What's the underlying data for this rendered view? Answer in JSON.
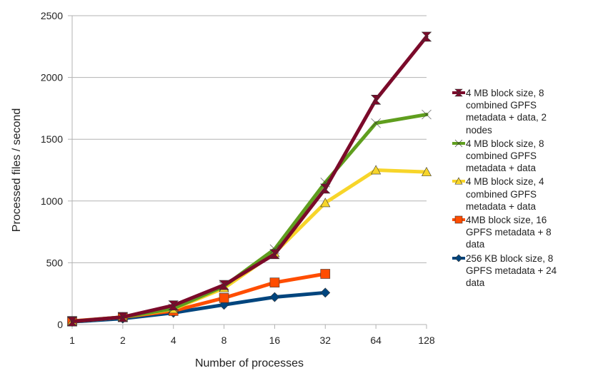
{
  "chart_data": {
    "type": "line",
    "title": "",
    "xlabel": "Number of processes",
    "ylabel": "Processed files / second",
    "x_scale": "log2",
    "categories": [
      "1",
      "2",
      "4",
      "8",
      "16",
      "32",
      "64",
      "128"
    ],
    "x": [
      1,
      2,
      4,
      8,
      16,
      32,
      64,
      128
    ],
    "yticks": [
      "0",
      "500",
      "1000",
      "1500",
      "2000",
      "2500"
    ],
    "ylim": [
      0,
      2500
    ],
    "grid": "horizontal",
    "legend_position": "right",
    "series": [
      {
        "name": "4 MB block size, 8 combined GPFS metadata + data, 2 nodes",
        "color": "#7b0a2a",
        "marker": "hourglass",
        "x": [
          1,
          2,
          4,
          8,
          16,
          32,
          64,
          128
        ],
        "values": [
          25,
          60,
          155,
          320,
          570,
          1100,
          1820,
          2330
        ]
      },
      {
        "name": "4 MB block size, 8 combined GPFS metadata + data",
        "color": "#5f9e1e",
        "marker": "bowtie",
        "x": [
          1,
          2,
          4,
          8,
          16,
          32,
          64,
          128
        ],
        "values": [
          25,
          60,
          130,
          310,
          610,
          1150,
          1630,
          1700
        ]
      },
      {
        "name": "4 MB block size, 4 combined GPFS metadata + data",
        "color": "#f7d52a",
        "marker": "triangle",
        "x": [
          1,
          2,
          4,
          8,
          16,
          32,
          64,
          128
        ],
        "values": [
          25,
          60,
          125,
          295,
          580,
          985,
          1250,
          1235
        ]
      },
      {
        "name": "4MB block size, 16 GPFS metadata + 8 data",
        "color": "#ff4d00",
        "marker": "square",
        "x": [
          1,
          2,
          4,
          8,
          16,
          32
        ],
        "values": [
          28,
          60,
          110,
          215,
          340,
          410
        ]
      },
      {
        "name": "256 KB block size, 8 GPFS metadata + 24 data",
        "color": "#00457e",
        "marker": "diamond",
        "x": [
          1,
          2,
          4,
          8,
          16,
          32
        ],
        "values": [
          22,
          48,
          95,
          160,
          222,
          258
        ]
      }
    ],
    "legend_lines": [
      [
        "4 MB block size, 8",
        "combined GPFS",
        "metadata + data, 2",
        "nodes"
      ],
      [
        "4 MB block size, 8",
        "combined GPFS",
        "metadata + data"
      ],
      [
        "4 MB block size, 4",
        "combined GPFS",
        "metadata + data"
      ],
      [
        "4MB block size, 16",
        "GPFS metadata + 8",
        "data"
      ],
      [
        "256 KB block size, 8",
        "GPFS metadata + 24",
        "data"
      ]
    ]
  }
}
